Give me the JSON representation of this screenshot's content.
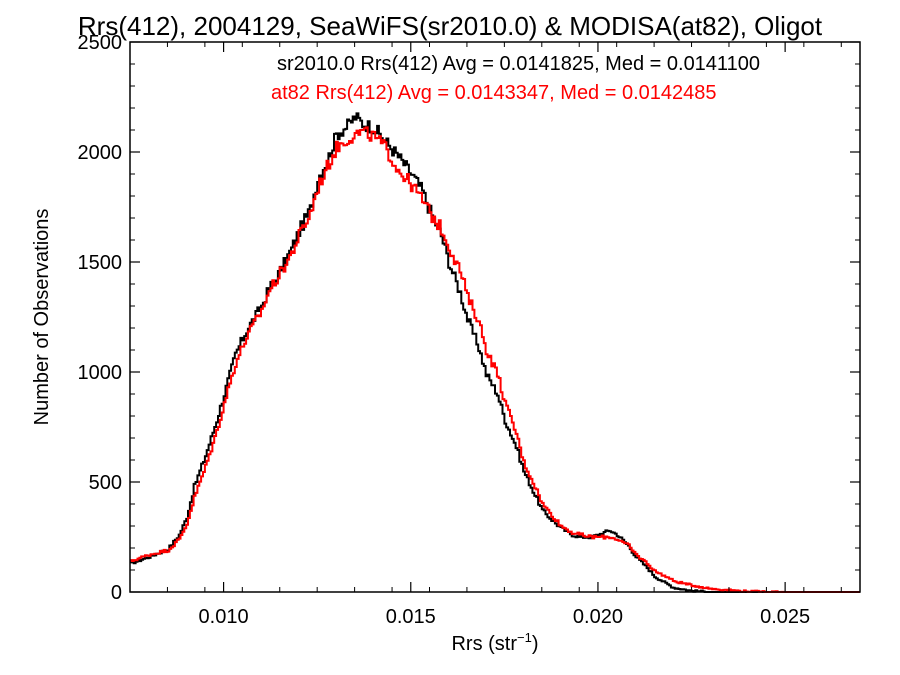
{
  "chart_data": {
    "type": "line",
    "title": "Rrs(412), 2004129, SeaWiFS(sr2010.0) & MODISA(at82), Oligot",
    "xlabel_main": "Rrs (str",
    "xlabel_sup": "−1",
    "xlabel_close": ")",
    "ylabel": "Number of Observations",
    "xlim": [
      0.0075,
      0.027
    ],
    "ylim": [
      0,
      2500
    ],
    "x_ticks": [
      "0.010",
      "0.015",
      "0.020",
      "0.025"
    ],
    "x_tick_values": [
      0.01,
      0.015,
      0.02,
      0.025
    ],
    "y_ticks": [
      "0",
      "500",
      "1000",
      "1500",
      "2000",
      "2500"
    ],
    "y_tick_values": [
      0,
      500,
      1000,
      1500,
      2000,
      2500
    ],
    "stats": [
      {
        "text": "sr2010.0 Rrs(412) Avg = 0.0141825, Med = 0.0141100",
        "color": "#000000"
      },
      {
        "text": "at82 Rrs(412) Avg = 0.0143347, Med = 0.0142485",
        "color": "#ff0000"
      }
    ],
    "series": [
      {
        "color": "#000000",
        "points": [
          [
            0.0075,
            130
          ],
          [
            0.008,
            160
          ],
          [
            0.0085,
            195
          ],
          [
            0.0088,
            260
          ],
          [
            0.009,
            340
          ],
          [
            0.0092,
            480
          ],
          [
            0.0095,
            620
          ],
          [
            0.0098,
            780
          ],
          [
            0.01,
            900
          ],
          [
            0.0103,
            1080
          ],
          [
            0.0106,
            1190
          ],
          [
            0.011,
            1300
          ],
          [
            0.0112,
            1380
          ],
          [
            0.0115,
            1460
          ],
          [
            0.0118,
            1560
          ],
          [
            0.012,
            1640
          ],
          [
            0.0123,
            1740
          ],
          [
            0.0125,
            1880
          ],
          [
            0.0128,
            1980
          ],
          [
            0.013,
            2080
          ],
          [
            0.0133,
            2120
          ],
          [
            0.0135,
            2160
          ],
          [
            0.0137,
            2130
          ],
          [
            0.014,
            2110
          ],
          [
            0.0143,
            2050
          ],
          [
            0.0146,
            1990
          ],
          [
            0.015,
            1900
          ],
          [
            0.0153,
            1820
          ],
          [
            0.0155,
            1730
          ],
          [
            0.0158,
            1620
          ],
          [
            0.016,
            1500
          ],
          [
            0.0163,
            1360
          ],
          [
            0.0165,
            1240
          ],
          [
            0.0168,
            1110
          ],
          [
            0.017,
            990
          ],
          [
            0.0173,
            900
          ],
          [
            0.0175,
            780
          ],
          [
            0.0178,
            660
          ],
          [
            0.018,
            550
          ],
          [
            0.0183,
            440
          ],
          [
            0.0185,
            370
          ],
          [
            0.0188,
            320
          ],
          [
            0.019,
            290
          ],
          [
            0.0193,
            260
          ],
          [
            0.0195,
            250
          ],
          [
            0.0198,
            250
          ],
          [
            0.02,
            260
          ],
          [
            0.0203,
            280
          ],
          [
            0.0205,
            260
          ],
          [
            0.0208,
            210
          ],
          [
            0.021,
            160
          ],
          [
            0.0213,
            110
          ],
          [
            0.0215,
            70
          ],
          [
            0.0218,
            40
          ],
          [
            0.022,
            20
          ],
          [
            0.0225,
            5
          ],
          [
            0.023,
            0
          ],
          [
            0.027,
            0
          ]
        ]
      },
      {
        "color": "#ff0000",
        "points": [
          [
            0.0075,
            140
          ],
          [
            0.008,
            170
          ],
          [
            0.0085,
            190
          ],
          [
            0.0088,
            240
          ],
          [
            0.009,
            310
          ],
          [
            0.0092,
            430
          ],
          [
            0.0095,
            570
          ],
          [
            0.0098,
            730
          ],
          [
            0.01,
            860
          ],
          [
            0.0103,
            1040
          ],
          [
            0.0106,
            1160
          ],
          [
            0.011,
            1280
          ],
          [
            0.0112,
            1370
          ],
          [
            0.0115,
            1450
          ],
          [
            0.0118,
            1540
          ],
          [
            0.012,
            1620
          ],
          [
            0.0123,
            1720
          ],
          [
            0.0125,
            1840
          ],
          [
            0.0128,
            1950
          ],
          [
            0.013,
            2020
          ],
          [
            0.0133,
            2060
          ],
          [
            0.0135,
            2080
          ],
          [
            0.0137,
            2090
          ],
          [
            0.014,
            2070
          ],
          [
            0.0143,
            2020
          ],
          [
            0.0146,
            1930
          ],
          [
            0.015,
            1850
          ],
          [
            0.0153,
            1780
          ],
          [
            0.0155,
            1720
          ],
          [
            0.0158,
            1650
          ],
          [
            0.016,
            1570
          ],
          [
            0.0163,
            1460
          ],
          [
            0.0165,
            1340
          ],
          [
            0.0168,
            1230
          ],
          [
            0.017,
            1100
          ],
          [
            0.0173,
            990
          ],
          [
            0.0175,
            860
          ],
          [
            0.0178,
            720
          ],
          [
            0.018,
            590
          ],
          [
            0.0183,
            480
          ],
          [
            0.0185,
            400
          ],
          [
            0.0188,
            340
          ],
          [
            0.019,
            300
          ],
          [
            0.0193,
            270
          ],
          [
            0.0195,
            260
          ],
          [
            0.0198,
            250
          ],
          [
            0.02,
            250
          ],
          [
            0.0203,
            250
          ],
          [
            0.0205,
            240
          ],
          [
            0.0208,
            210
          ],
          [
            0.021,
            170
          ],
          [
            0.0213,
            130
          ],
          [
            0.0215,
            95
          ],
          [
            0.0218,
            70
          ],
          [
            0.022,
            50
          ],
          [
            0.0225,
            30
          ],
          [
            0.023,
            15
          ],
          [
            0.0235,
            8
          ],
          [
            0.024,
            3
          ],
          [
            0.025,
            0
          ],
          [
            0.027,
            0
          ]
        ]
      }
    ]
  }
}
